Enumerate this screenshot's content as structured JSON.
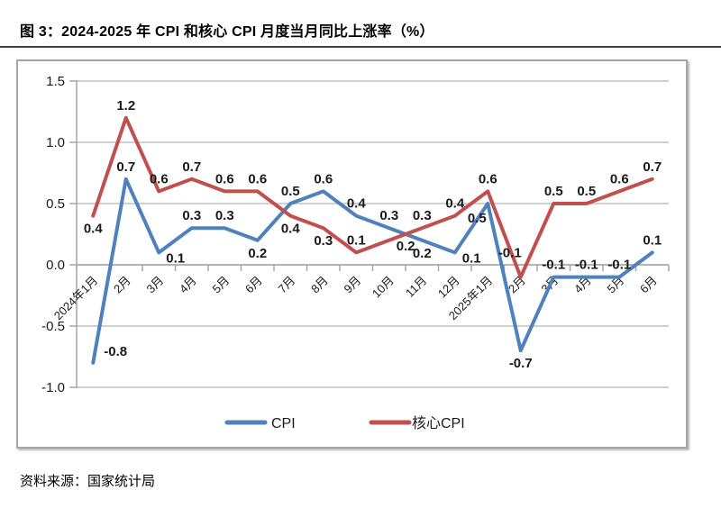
{
  "title": "图 3：2024-2025 年 CPI 和核心 CPI 月度当月同比上涨率（%）",
  "source": "资料来源：国家统计局",
  "colors": {
    "cpi_line": "#4F81BD",
    "core_cpi_line": "#C0504D",
    "gridline": "#c0c0c0",
    "axis": "#a6a6a6",
    "label_text": "#1a1a1a",
    "title_rule": "#3f3f3f",
    "chart_border": "#a6a6a6"
  },
  "chart_data": {
    "type": "line",
    "title": "",
    "xlabel": "",
    "ylabel": "",
    "ylim": [
      -1.0,
      1.5
    ],
    "ytick_step": 0.5,
    "ytick_labels": [
      "1.5",
      "1.0",
      "0.5",
      "0.0",
      "-0.5",
      "-1.0"
    ],
    "grid": true,
    "data_labels": true,
    "legend_position": "bottom",
    "categories": [
      "2024年1月",
      "2月",
      "3月",
      "4月",
      "5月",
      "6月",
      "7月",
      "8月",
      "9月",
      "10月",
      "11月",
      "12月",
      "2025年1月",
      "2月",
      "3月",
      "4月",
      "5月",
      "6月"
    ],
    "series": [
      {
        "name": "CPI",
        "color": "#4F81BD",
        "values": [
          -0.8,
          0.7,
          0.1,
          0.3,
          0.3,
          0.2,
          0.5,
          0.6,
          0.4,
          0.3,
          0.2,
          0.1,
          0.5,
          -0.7,
          -0.1,
          -0.1,
          -0.1,
          0.1
        ],
        "label_pos": [
          "right",
          "above",
          "right-below",
          "above",
          "above",
          "below",
          "above",
          "above",
          "above",
          "above",
          "below",
          "right-below",
          "below-left",
          "below",
          "above",
          "above",
          "above",
          "above"
        ]
      },
      {
        "name": "核心CPI",
        "color": "#C0504D",
        "values": [
          0.4,
          1.2,
          0.6,
          0.7,
          0.6,
          0.6,
          0.4,
          0.3,
          0.1,
          0.2,
          0.3,
          0.4,
          0.6,
          -0.1,
          0.5,
          0.5,
          0.6,
          0.7
        ],
        "label_pos": [
          "below",
          "above",
          "above",
          "above",
          "above",
          "above",
          "below",
          "below",
          "above",
          "right-below",
          "above",
          "above",
          "above",
          "above-left",
          "above",
          "above",
          "above",
          "above"
        ]
      }
    ]
  }
}
